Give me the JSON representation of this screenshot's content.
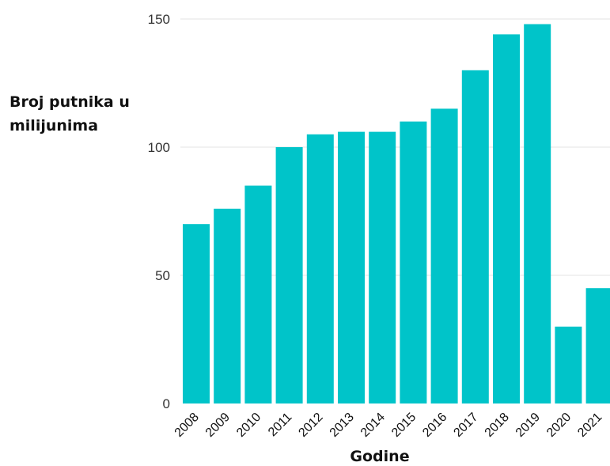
{
  "chart_data": {
    "type": "bar",
    "title": "",
    "xlabel": "Godine",
    "ylabel": "Broj putnika u milijunima",
    "categories": [
      "2008",
      "2009",
      "2010",
      "2011",
      "2012",
      "2013",
      "2014",
      "2015",
      "2016",
      "2017",
      "2018",
      "2019",
      "2020",
      "2021"
    ],
    "values": [
      70,
      76,
      85,
      100,
      105,
      106,
      106,
      110,
      115,
      130,
      144,
      148,
      30,
      45
    ],
    "ylim": [
      0,
      150
    ],
    "yticks": [
      "0",
      "50",
      "100",
      "150"
    ],
    "grid": true,
    "colors": {
      "bar": "#00c4c9",
      "grid": "#e3e3e3"
    }
  }
}
